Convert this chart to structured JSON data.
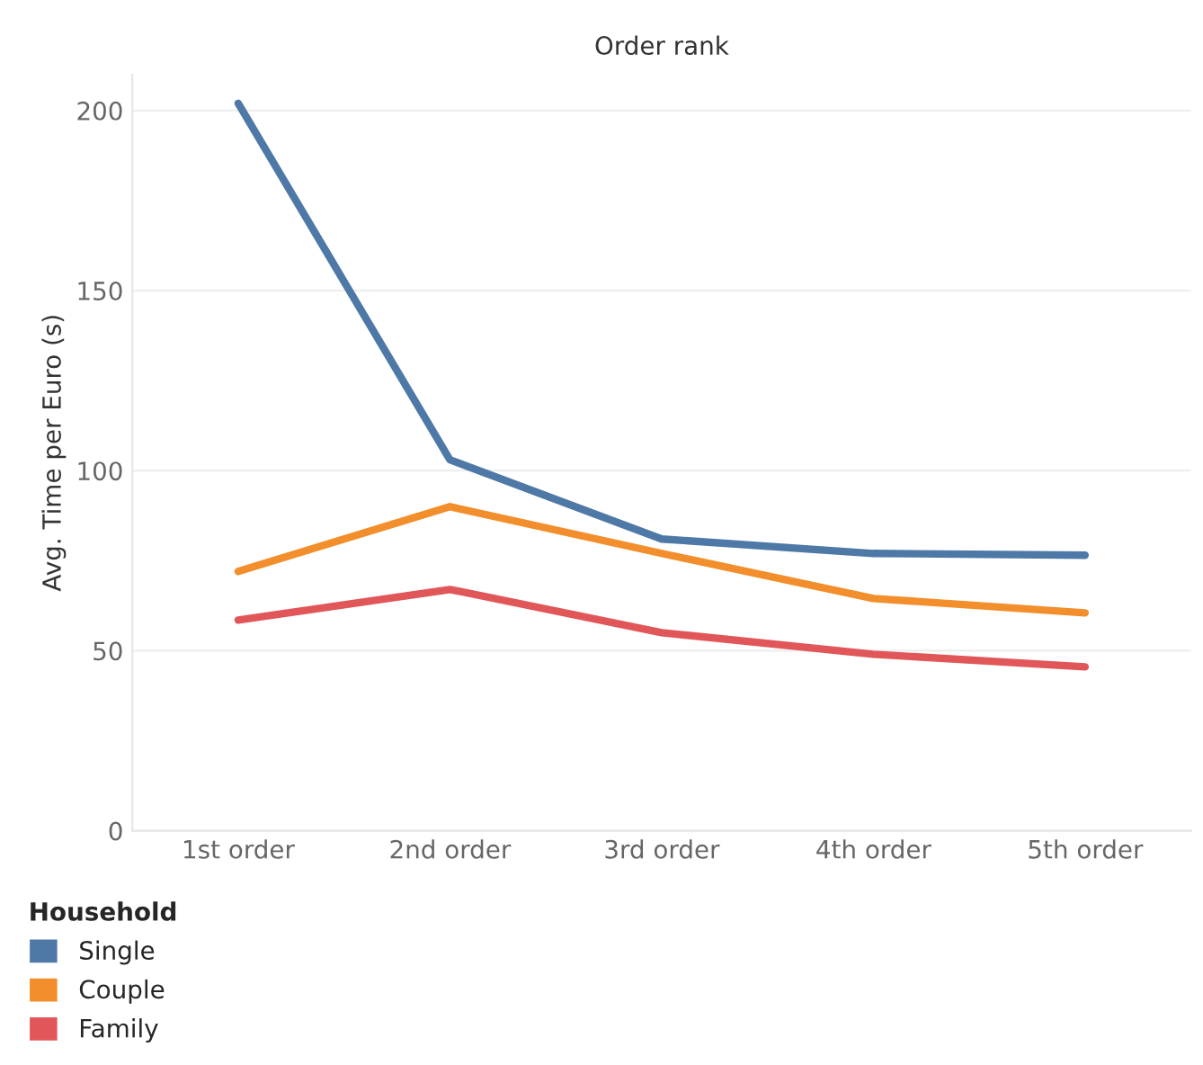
{
  "chart_data": {
    "type": "line",
    "xlabel": "Order rank",
    "ylabel": "Avg. Time per Euro (s)",
    "legend_title": "Household",
    "categories": [
      "1st order",
      "2nd order",
      "3rd order",
      "4th order",
      "5th order"
    ],
    "series": [
      {
        "name": "Single",
        "color": "#4e79a7",
        "values": [
          202,
          103,
          81,
          77,
          76.5
        ]
      },
      {
        "name": "Couple",
        "color": "#f28e2b",
        "values": [
          72,
          90,
          77,
          64.5,
          60.5
        ]
      },
      {
        "name": "Family",
        "color": "#e15759",
        "values": [
          58.5,
          67,
          55,
          49,
          45.5
        ]
      }
    ],
    "ylim": [
      0,
      210
    ],
    "yticks": [
      0,
      50,
      100,
      150,
      200
    ],
    "grid": "y",
    "legend": "bottom left",
    "marker": "none",
    "line_style": "solid"
  }
}
